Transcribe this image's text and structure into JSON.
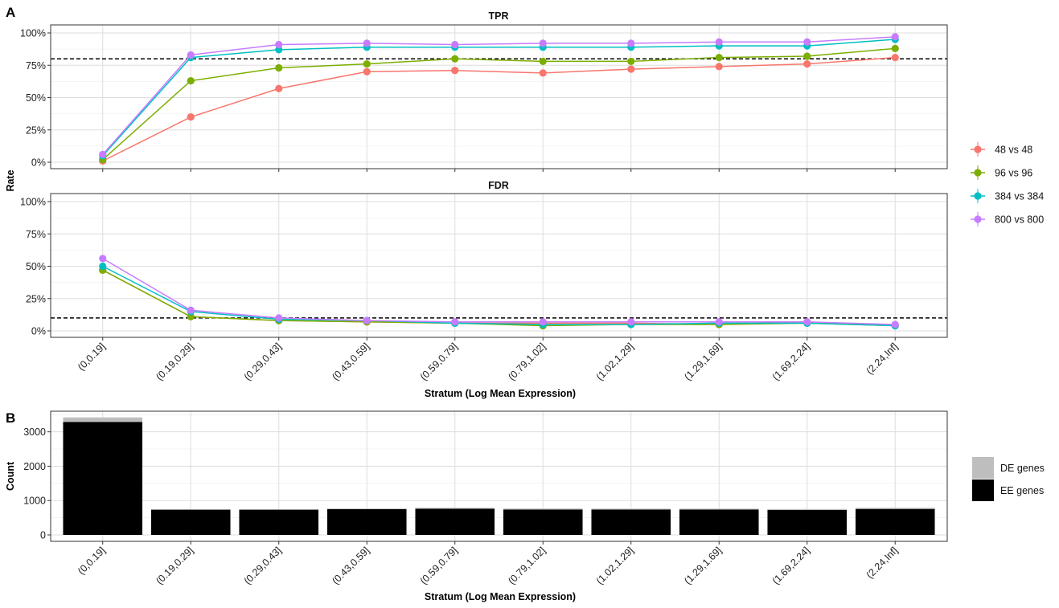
{
  "panel_labels": {
    "a": "A",
    "b": "B"
  },
  "colors": {
    "48 vs 48": "#F8766D",
    "96 vs 96": "#7CAE00",
    "384 vs 384": "#00BFC4",
    "800 vs 800": "#C77CFF",
    "DE genes": "#BEBEBE",
    "EE genes": "#000000",
    "grid": "#DDDDDD",
    "panel_border": "#333333",
    "threshold_line": "#000000"
  },
  "chart_data": [
    {
      "type": "line",
      "title": "TPR",
      "ylabel": "Rate",
      "xlabel": "Stratum (Log Mean Expression)",
      "categories": [
        "(0,0.19]",
        "(0.19,0.29]",
        "(0.29,0.43]",
        "(0.43,0.59]",
        "(0.59,0.79]",
        "(0.79,1.02]",
        "(1.02,1.29]",
        "(1.29,1.69]",
        "(1.69,2.24]",
        "(2.24,Inf]"
      ],
      "ylim": [
        0,
        1
      ],
      "yticks": [
        "0%",
        "25%",
        "50%",
        "75%",
        "100%"
      ],
      "threshold": 0.8,
      "grid": true,
      "legend_position": "right",
      "series": [
        {
          "name": "48 vs 48",
          "values": [
            0.01,
            0.35,
            0.57,
            0.7,
            0.71,
            0.69,
            0.72,
            0.74,
            0.76,
            0.81
          ]
        },
        {
          "name": "96 vs 96",
          "values": [
            0.02,
            0.63,
            0.73,
            0.76,
            0.8,
            0.78,
            0.78,
            0.81,
            0.82,
            0.88
          ]
        },
        {
          "name": "384 vs 384",
          "values": [
            0.05,
            0.81,
            0.87,
            0.89,
            0.89,
            0.89,
            0.89,
            0.9,
            0.9,
            0.95
          ]
        },
        {
          "name": "800 vs 800",
          "values": [
            0.06,
            0.83,
            0.91,
            0.92,
            0.91,
            0.92,
            0.92,
            0.93,
            0.93,
            0.97
          ]
        }
      ]
    },
    {
      "type": "line",
      "title": "FDR",
      "ylabel": "Rate",
      "xlabel": "Stratum (Log Mean Expression)",
      "categories": [
        "(0,0.19]",
        "(0.19,0.29]",
        "(0.29,0.43]",
        "(0.43,0.59]",
        "(0.59,0.79]",
        "(0.79,1.02]",
        "(1.02,1.29]",
        "(1.29,1.69]",
        "(1.69,2.24]",
        "(2.24,Inf]"
      ],
      "ylim": [
        0,
        1
      ],
      "yticks": [
        "0%",
        "25%",
        "50%",
        "75%",
        "100%"
      ],
      "threshold": 0.1,
      "grid": true,
      "legend_position": "right",
      "series": [
        {
          "name": "48 vs 48",
          "values": [
            0.47,
            0.11,
            0.08,
            0.07,
            0.06,
            0.06,
            0.06,
            0.05,
            0.07,
            0.04
          ]
        },
        {
          "name": "96 vs 96",
          "values": [
            0.47,
            0.11,
            0.08,
            0.07,
            0.06,
            0.04,
            0.05,
            0.05,
            0.06,
            0.04
          ]
        },
        {
          "name": "384 vs 384",
          "values": [
            0.5,
            0.15,
            0.09,
            0.08,
            0.06,
            0.05,
            0.05,
            0.06,
            0.06,
            0.04
          ]
        },
        {
          "name": "800 vs 800",
          "values": [
            0.56,
            0.16,
            0.1,
            0.08,
            0.07,
            0.07,
            0.07,
            0.07,
            0.07,
            0.05
          ]
        }
      ]
    },
    {
      "type": "bar",
      "stacked": true,
      "ylabel": "Count",
      "xlabel": "Stratum (Log Mean Expression)",
      "categories": [
        "(0,0.19]",
        "(0.19,0.29]",
        "(0.29,0.43]",
        "(0.43,0.59]",
        "(0.59,0.79]",
        "(0.79,1.02]",
        "(1.02,1.29]",
        "(1.29,1.69]",
        "(1.69,2.24]",
        "(2.24,Inf]"
      ],
      "ylim": [
        0,
        3600
      ],
      "yticks": [
        "0",
        "1000",
        "2000",
        "3000"
      ],
      "grid": true,
      "legend_position": "right",
      "series": [
        {
          "name": "EE genes",
          "values": [
            3290,
            735,
            735,
            750,
            760,
            740,
            740,
            740,
            725,
            755
          ]
        },
        {
          "name": "DE genes",
          "values": [
            130,
            5,
            5,
            20,
            30,
            30,
            25,
            25,
            30,
            35
          ]
        }
      ]
    }
  ]
}
